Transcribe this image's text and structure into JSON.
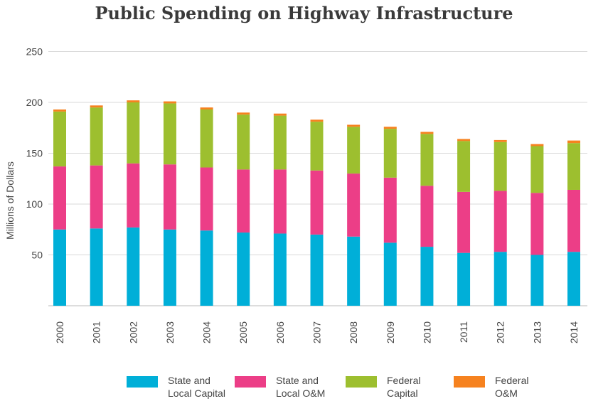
{
  "chart_data": {
    "type": "bar",
    "stacked": true,
    "title": "Public Spending on Highway Infrastructure",
    "ylabel": "Millions of Dollars",
    "xlabel": "",
    "ylim": [
      0,
      250
    ],
    "yticks": [
      50,
      100,
      150,
      200,
      250
    ],
    "grid": true,
    "legend_position": "bottom",
    "categories": [
      "2000",
      "2001",
      "2002",
      "2003",
      "2004",
      "2005",
      "2006",
      "2007",
      "2008",
      "2009",
      "2010",
      "2011",
      "2012",
      "2013",
      "2014"
    ],
    "series": [
      {
        "name": "State and Local Capital",
        "color": "#00afd8",
        "values": [
          75,
          76,
          77,
          75,
          74,
          72,
          71,
          70,
          68,
          62,
          58,
          52,
          53,
          50,
          53
        ]
      },
      {
        "name": "State and Local O&M",
        "color": "#ec3e87",
        "values": [
          62,
          62,
          63,
          64,
          62,
          62,
          63,
          63,
          62,
          64,
          60,
          60,
          60,
          61,
          61
        ]
      },
      {
        "name": "Federal Capital",
        "color": "#9dbf2f",
        "values": [
          54,
          57,
          60,
          60,
          57,
          54,
          53,
          48,
          46,
          48,
          51,
          50,
          48,
          46,
          46
        ]
      },
      {
        "name": "Federal O&M",
        "color": "#f6821f",
        "values": [
          2,
          2,
          2,
          2,
          2,
          2,
          2,
          2,
          2,
          2,
          2,
          2,
          2,
          2,
          2.5
        ]
      }
    ]
  },
  "legend": [
    {
      "line1": "State and",
      "line2": "Local Capital",
      "color": "#00afd8"
    },
    {
      "line1": "State and",
      "line2": "Local O&M",
      "color": "#ec3e87"
    },
    {
      "line1": "Federal",
      "line2": "Capital",
      "color": "#9dbf2f"
    },
    {
      "line1": "Federal",
      "line2": "O&M",
      "color": "#f6821f"
    }
  ]
}
